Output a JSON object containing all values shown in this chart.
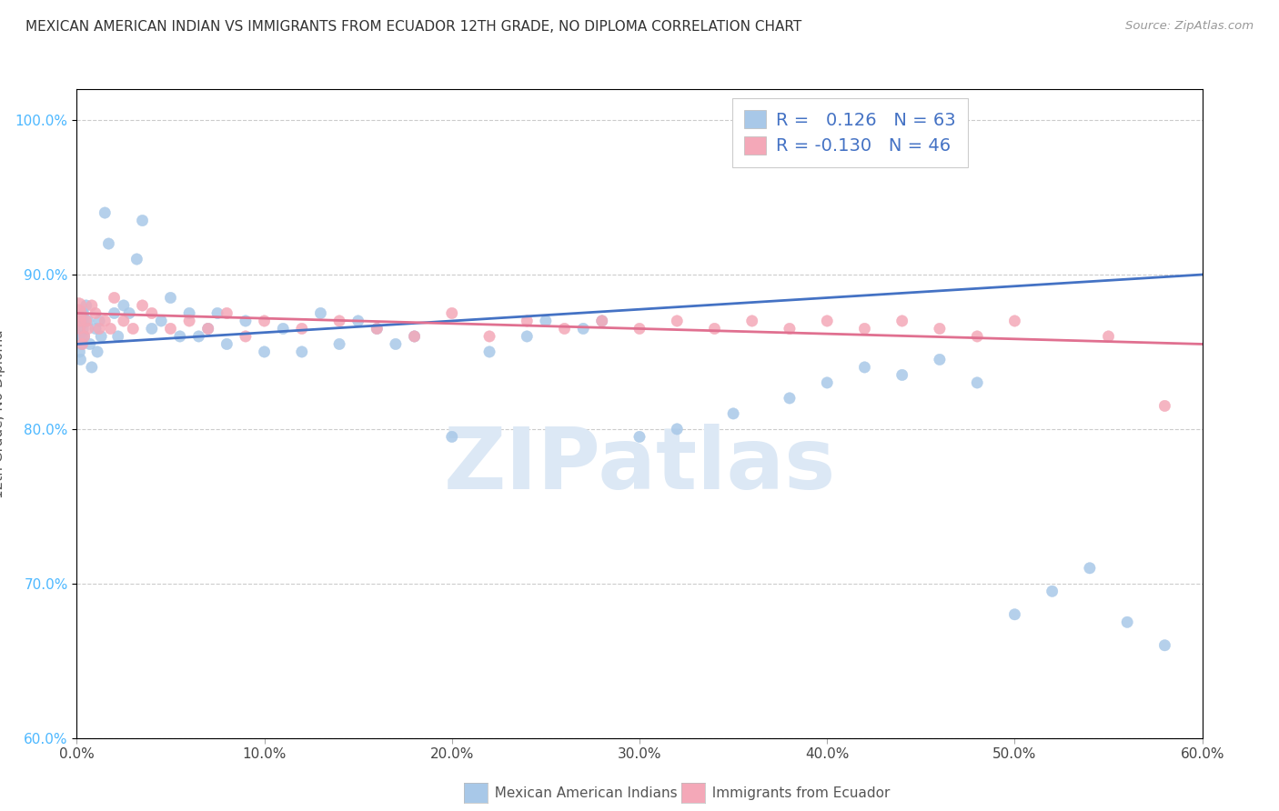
{
  "title": "MEXICAN AMERICAN INDIAN VS IMMIGRANTS FROM ECUADOR 12TH GRADE, NO DIPLOMA CORRELATION CHART",
  "source": "Source: ZipAtlas.com",
  "ylabel": "12th Grade, No Diploma",
  "xlim": [
    0.0,
    60.0
  ],
  "ylim": [
    60.0,
    102.0
  ],
  "ytick_values": [
    60.0,
    70.0,
    80.0,
    90.0,
    100.0
  ],
  "xtick_values": [
    0.0,
    10.0,
    20.0,
    30.0,
    40.0,
    50.0,
    60.0
  ],
  "blue_R": 0.126,
  "blue_N": 63,
  "pink_R": -0.13,
  "pink_N": 46,
  "blue_color": "#a8c8e8",
  "pink_color": "#f4a8b8",
  "blue_line_color": "#4472c4",
  "pink_line_color": "#e07090",
  "legend_value_color": "#4472c4",
  "watermark_color": "#dce8f5",
  "legend_label_blue": "Mexican American Indians",
  "legend_label_pink": "Immigrants from Ecuador",
  "blue_x": [
    0.05,
    0.1,
    0.15,
    0.2,
    0.25,
    0.3,
    0.35,
    0.4,
    0.5,
    0.6,
    0.7,
    0.8,
    1.0,
    1.1,
    1.2,
    1.3,
    1.5,
    1.7,
    2.0,
    2.2,
    2.5,
    2.8,
    3.2,
    3.5,
    4.0,
    4.5,
    5.0,
    5.5,
    6.0,
    6.5,
    7.0,
    7.5,
    8.0,
    9.0,
    10.0,
    11.0,
    12.0,
    13.0,
    14.0,
    15.0,
    16.0,
    17.0,
    18.0,
    20.0,
    22.0,
    24.0,
    25.0,
    27.0,
    28.0,
    30.0,
    32.0,
    35.0,
    38.0,
    40.0,
    42.0,
    44.0,
    46.0,
    48.0,
    50.0,
    52.0,
    54.0,
    56.0,
    58.0
  ],
  "blue_y": [
    86.5,
    87.0,
    85.0,
    84.5,
    85.5,
    86.0,
    87.5,
    86.0,
    88.0,
    87.0,
    85.5,
    84.0,
    86.5,
    85.0,
    87.0,
    86.0,
    94.0,
    92.0,
    87.5,
    86.0,
    88.0,
    87.5,
    91.0,
    93.5,
    86.5,
    87.0,
    88.5,
    86.0,
    87.5,
    86.0,
    86.5,
    87.5,
    85.5,
    87.0,
    85.0,
    86.5,
    85.0,
    87.5,
    85.5,
    87.0,
    86.5,
    85.5,
    86.0,
    79.5,
    85.0,
    86.0,
    87.0,
    86.5,
    87.0,
    79.5,
    80.0,
    81.0,
    82.0,
    83.0,
    84.0,
    83.5,
    84.5,
    83.0,
    68.0,
    69.5,
    71.0,
    67.5,
    66.0
  ],
  "blue_size": [
    300,
    250,
    80,
    80,
    80,
    80,
    80,
    80,
    80,
    80,
    80,
    80,
    80,
    80,
    80,
    80,
    80,
    80,
    80,
    80,
    80,
    80,
    80,
    80,
    80,
    80,
    80,
    80,
    80,
    80,
    80,
    80,
    80,
    80,
    80,
    80,
    80,
    80,
    80,
    80,
    80,
    80,
    80,
    80,
    80,
    80,
    80,
    80,
    80,
    80,
    80,
    80,
    80,
    80,
    80,
    80,
    80,
    80,
    80,
    80,
    80,
    80,
    80
  ],
  "pink_x": [
    0.05,
    0.1,
    0.15,
    0.2,
    0.3,
    0.4,
    0.5,
    0.6,
    0.8,
    1.0,
    1.2,
    1.5,
    1.8,
    2.0,
    2.5,
    3.0,
    3.5,
    4.0,
    5.0,
    6.0,
    7.0,
    8.0,
    9.0,
    10.0,
    12.0,
    14.0,
    16.0,
    18.0,
    20.0,
    22.0,
    24.0,
    26.0,
    28.0,
    30.0,
    32.0,
    34.0,
    36.0,
    38.0,
    40.0,
    42.0,
    44.0,
    46.0,
    48.0,
    50.0,
    55.0,
    58.0
  ],
  "pink_y": [
    87.5,
    88.0,
    86.5,
    87.0,
    85.5,
    86.0,
    87.0,
    86.5,
    88.0,
    87.5,
    86.5,
    87.0,
    86.5,
    88.5,
    87.0,
    86.5,
    88.0,
    87.5,
    86.5,
    87.0,
    86.5,
    87.5,
    86.0,
    87.0,
    86.5,
    87.0,
    86.5,
    86.0,
    87.5,
    86.0,
    87.0,
    86.5,
    87.0,
    86.5,
    87.0,
    86.5,
    87.0,
    86.5,
    87.0,
    86.5,
    87.0,
    86.5,
    86.0,
    87.0,
    86.0,
    81.5
  ],
  "pink_size": [
    200,
    150,
    80,
    80,
    80,
    80,
    80,
    80,
    80,
    80,
    80,
    80,
    80,
    80,
    80,
    80,
    80,
    80,
    80,
    80,
    80,
    80,
    80,
    80,
    80,
    80,
    80,
    80,
    80,
    80,
    80,
    80,
    80,
    80,
    80,
    80,
    80,
    80,
    80,
    80,
    80,
    80,
    80,
    80,
    80,
    80
  ]
}
